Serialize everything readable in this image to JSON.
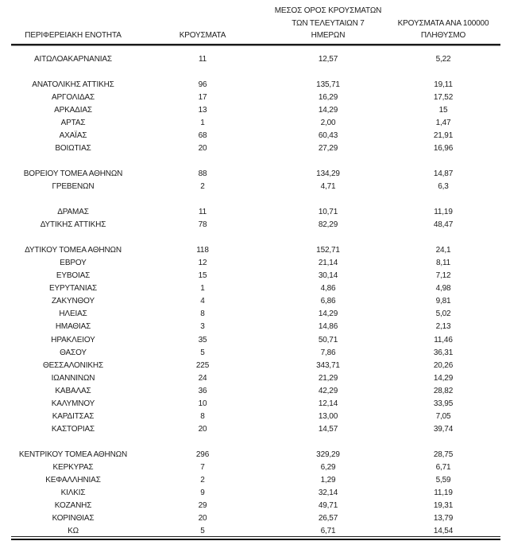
{
  "page": {
    "background": "#ffffff",
    "text_color": "#1c1c1c",
    "rule_color": "#1b1b1b"
  },
  "table": {
    "columns": [
      {
        "id": "region",
        "label": "ΠΕΡΙΦΕΡΕΙΑΚΗ ΕΝΟΤΗΤΑ"
      },
      {
        "id": "cases",
        "label": "ΚΡΟΥΣΜΑΤΑ"
      },
      {
        "id": "avg7",
        "label": "ΜΕΣΟΣ ΟΡΟΣ ΚΡΟΥΣΜΑΤΩΝ\nΤΩΝ ΤΕΛΕΥΤΑΙΩΝ 7\nΗΜΕΡΩΝ"
      },
      {
        "id": "per100k",
        "label": "ΚΡΟΥΣΜΑΤΑ ΑΝΑ 100000\nΠΛΗΘΥΣΜΟ"
      }
    ],
    "groups": [
      [
        {
          "region": "ΑΙΤΩΛΟΑΚΑΡΝΑΝΙΑΣ",
          "cases": "11",
          "avg7": "12,57",
          "per100k": "5,22"
        }
      ],
      [
        {
          "region": "ΑΝΑΤΟΛΙΚΗΣ ΑΤΤΙΚΗΣ",
          "cases": "96",
          "avg7": "135,71",
          "per100k": "19,11"
        },
        {
          "region": "ΑΡΓΟΛΙΔΑΣ",
          "cases": "17",
          "avg7": "16,29",
          "per100k": "17,52"
        },
        {
          "region": "ΑΡΚΑΔΙΑΣ",
          "cases": "13",
          "avg7": "14,29",
          "per100k": "15"
        },
        {
          "region": "ΑΡΤΑΣ",
          "cases": "1",
          "avg7": "2,00",
          "per100k": "1,47"
        },
        {
          "region": "ΑΧΑΪΑΣ",
          "cases": "68",
          "avg7": "60,43",
          "per100k": "21,91"
        },
        {
          "region": "ΒΟΙΩΤΙΑΣ",
          "cases": "20",
          "avg7": "27,29",
          "per100k": "16,96"
        }
      ],
      [
        {
          "region": "ΒΟΡΕΙΟΥ ΤΟΜΕΑ ΑΘΗΝΩΝ",
          "cases": "88",
          "avg7": "134,29",
          "per100k": "14,87"
        },
        {
          "region": "ΓΡΕΒΕΝΩΝ",
          "cases": "2",
          "avg7": "4,71",
          "per100k": "6,3"
        }
      ],
      [
        {
          "region": "ΔΡΑΜΑΣ",
          "cases": "11",
          "avg7": "10,71",
          "per100k": "11,19"
        },
        {
          "region": "ΔΥΤΙΚΗΣ ΑΤΤΙΚΗΣ",
          "cases": "78",
          "avg7": "82,29",
          "per100k": "48,47"
        }
      ],
      [
        {
          "region": "ΔΥΤΙΚΟΥ ΤΟΜΕΑ ΑΘΗΝΩΝ",
          "cases": "118",
          "avg7": "152,71",
          "per100k": "24,1"
        },
        {
          "region": "ΕΒΡΟΥ",
          "cases": "12",
          "avg7": "21,14",
          "per100k": "8,11"
        },
        {
          "region": "ΕΥΒΟΙΑΣ",
          "cases": "15",
          "avg7": "30,14",
          "per100k": "7,12"
        },
        {
          "region": "ΕΥΡΥΤΑΝΙΑΣ",
          "cases": "1",
          "avg7": "4,86",
          "per100k": "4,98"
        },
        {
          "region": "ΖΑΚΥΝΘΟΥ",
          "cases": "4",
          "avg7": "6,86",
          "per100k": "9,81"
        },
        {
          "region": "ΗΛΕΙΑΣ",
          "cases": "8",
          "avg7": "14,29",
          "per100k": "5,02"
        },
        {
          "region": "ΗΜΑΘΙΑΣ",
          "cases": "3",
          "avg7": "14,86",
          "per100k": "2,13"
        },
        {
          "region": "ΗΡΑΚΛΕΙΟΥ",
          "cases": "35",
          "avg7": "50,71",
          "per100k": "11,46"
        },
        {
          "region": "ΘΑΣΟΥ",
          "cases": "5",
          "avg7": "7,86",
          "per100k": "36,31"
        },
        {
          "region": "ΘΕΣΣΑΛΟΝΙΚΗΣ",
          "cases": "225",
          "avg7": "343,71",
          "per100k": "20,26"
        },
        {
          "region": "ΙΩΑΝΝΙΝΩΝ",
          "cases": "24",
          "avg7": "21,29",
          "per100k": "14,29"
        },
        {
          "region": "ΚΑΒΑΛΑΣ",
          "cases": "36",
          "avg7": "42,29",
          "per100k": "28,82"
        },
        {
          "region": "ΚΑΛΥΜΝΟΥ",
          "cases": "10",
          "avg7": "12,14",
          "per100k": "33,95"
        },
        {
          "region": "ΚΑΡΔΙΤΣΑΣ",
          "cases": "8",
          "avg7": "13,00",
          "per100k": "7,05"
        },
        {
          "region": "ΚΑΣΤΟΡΙΑΣ",
          "cases": "20",
          "avg7": "14,57",
          "per100k": "39,74"
        }
      ],
      [
        {
          "region": "ΚΕΝΤΡΙΚΟΥ ΤΟΜΕΑ ΑΘΗΝΩΝ",
          "cases": "296",
          "avg7": "329,29",
          "per100k": "28,75"
        },
        {
          "region": "ΚΕΡΚΥΡΑΣ",
          "cases": "7",
          "avg7": "6,29",
          "per100k": "6,71"
        },
        {
          "region": "ΚΕΦΑΛΛΗΝΙΑΣ",
          "cases": "2",
          "avg7": "1,29",
          "per100k": "5,59"
        },
        {
          "region": "ΚΙΛΚΙΣ",
          "cases": "9",
          "avg7": "32,14",
          "per100k": "11,19"
        },
        {
          "region": "ΚΟΖΑΝΗΣ",
          "cases": "29",
          "avg7": "49,71",
          "per100k": "19,31"
        },
        {
          "region": "ΚΟΡΙΝΘΙΑΣ",
          "cases": "20",
          "avg7": "26,57",
          "per100k": "13,79"
        },
        {
          "region": "ΚΩ",
          "cases": "5",
          "avg7": "6,71",
          "per100k": "14,54"
        }
      ]
    ]
  }
}
